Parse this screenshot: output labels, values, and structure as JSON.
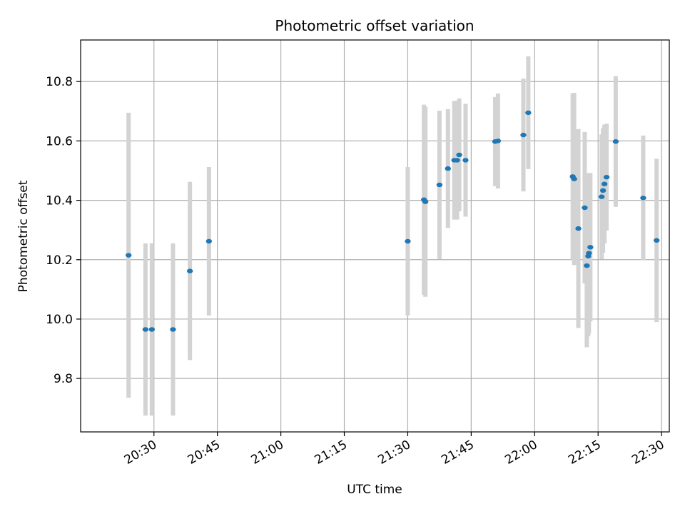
{
  "chart_data": {
    "type": "scatter",
    "title": "Photometric offset variation",
    "xlabel": "UTC time",
    "ylabel": "Photometric offset",
    "x_unit": "UTC time of day (hh:mm:ss)",
    "xlim": [
      "20:12:40",
      "22:31:50"
    ],
    "ylim": [
      9.62,
      10.94
    ],
    "xticks": [
      "20:30",
      "20:45",
      "21:00",
      "21:15",
      "21:30",
      "21:45",
      "22:00",
      "22:15",
      "22:30"
    ],
    "yticks": [
      9.8,
      10.0,
      10.2,
      10.4,
      10.6,
      10.8
    ],
    "grid": true,
    "colors": {
      "points": "#1f77b4",
      "error_bars": "#d3d3d3",
      "grid": "#b0b0b0"
    },
    "points": [
      {
        "t": "20:24:00",
        "y": 10.215,
        "err": 0.48
      },
      {
        "t": "20:28:00",
        "y": 9.965,
        "err": 0.29
      },
      {
        "t": "20:29:30",
        "y": 9.965,
        "err": 0.29
      },
      {
        "t": "20:34:30",
        "y": 9.965,
        "err": 0.29
      },
      {
        "t": "20:38:30",
        "y": 10.162,
        "err": 0.3
      },
      {
        "t": "20:43:00",
        "y": 10.262,
        "err": 0.25
      },
      {
        "t": "21:30:00",
        "y": 10.262,
        "err": 0.25
      },
      {
        "t": "21:33:50",
        "y": 10.402,
        "err": 0.32
      },
      {
        "t": "21:34:10",
        "y": 10.395,
        "err": 0.32
      },
      {
        "t": "21:37:30",
        "y": 10.452,
        "err": 0.25
      },
      {
        "t": "21:39:30",
        "y": 10.507,
        "err": 0.2
      },
      {
        "t": "21:41:00",
        "y": 10.535,
        "err": 0.2
      },
      {
        "t": "21:41:40",
        "y": 10.535,
        "err": 0.2
      },
      {
        "t": "21:42:10",
        "y": 10.553,
        "err": 0.19
      },
      {
        "t": "21:43:40",
        "y": 10.535,
        "err": 0.19
      },
      {
        "t": "21:50:40",
        "y": 10.598,
        "err": 0.15
      },
      {
        "t": "21:51:20",
        "y": 10.6,
        "err": 0.16
      },
      {
        "t": "21:57:20",
        "y": 10.62,
        "err": 0.19
      },
      {
        "t": "21:58:30",
        "y": 10.695,
        "err": 0.19
      },
      {
        "t": "22:09:00",
        "y": 10.48,
        "err": 0.28
      },
      {
        "t": "22:09:20",
        "y": 10.472,
        "err": 0.29
      },
      {
        "t": "22:10:20",
        "y": 10.305,
        "err": 0.335
      },
      {
        "t": "22:11:50",
        "y": 10.375,
        "err": 0.255
      },
      {
        "t": "22:12:20",
        "y": 10.18,
        "err": 0.275
      },
      {
        "t": "22:12:40",
        "y": 10.212,
        "err": 0.27
      },
      {
        "t": "22:12:50",
        "y": 10.222,
        "err": 0.27
      },
      {
        "t": "22:13:10",
        "y": 10.242,
        "err": 0.25
      },
      {
        "t": "22:15:50",
        "y": 10.412,
        "err": 0.21
      },
      {
        "t": "22:16:10",
        "y": 10.433,
        "err": 0.21
      },
      {
        "t": "22:16:30",
        "y": 10.455,
        "err": 0.2
      },
      {
        "t": "22:17:00",
        "y": 10.478,
        "err": 0.18
      },
      {
        "t": "22:19:10",
        "y": 10.598,
        "err": 0.22
      },
      {
        "t": "22:25:40",
        "y": 10.408,
        "err": 0.21
      },
      {
        "t": "22:28:50",
        "y": 10.265,
        "err": 0.275
      }
    ]
  }
}
